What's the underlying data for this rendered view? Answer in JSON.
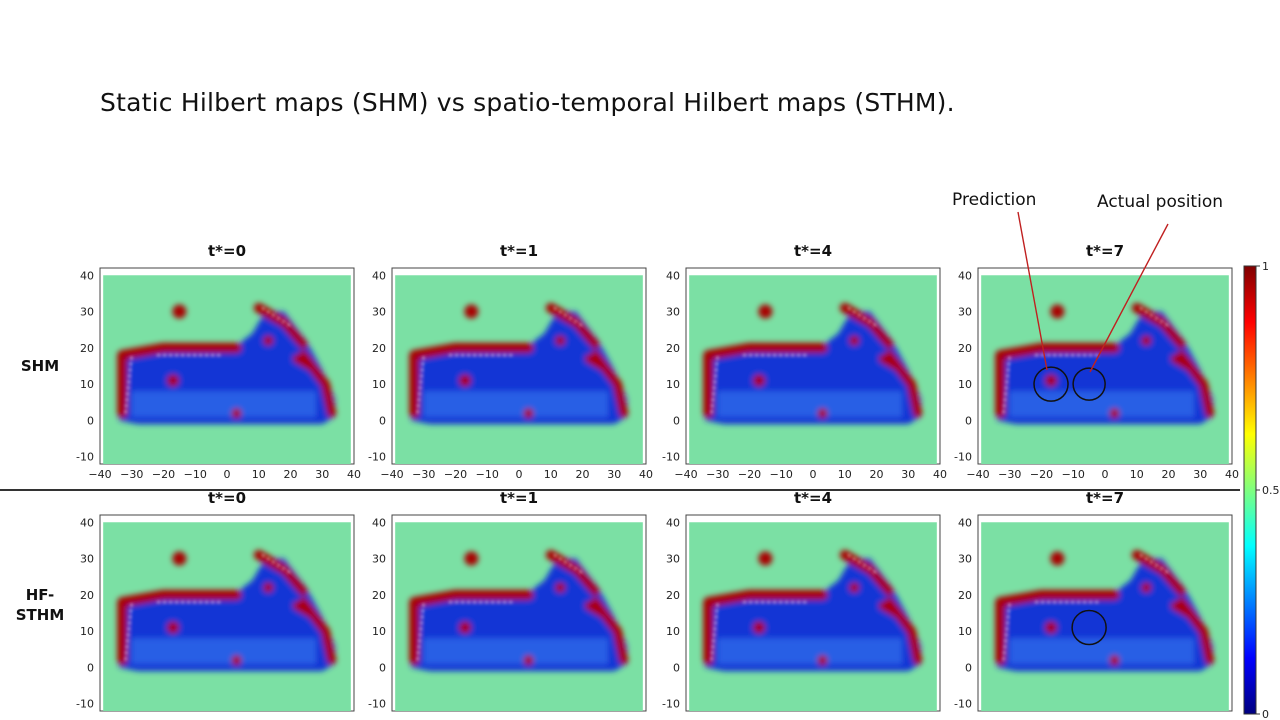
{
  "slide": {
    "title": "Static Hilbert maps (SHM) vs spatio-temporal Hilbert maps (STHM)."
  },
  "rows": [
    {
      "label": "SHM"
    },
    {
      "label": "HF-\nSTHM"
    }
  ],
  "panels": [
    {
      "title": "t*=0"
    },
    {
      "title": "t*=1"
    },
    {
      "title": "t*=4"
    },
    {
      "title": "t*=7"
    }
  ],
  "annotations": {
    "prediction": "Prediction",
    "actual": "Actual position"
  },
  "colors": {
    "background": "#7be0a4",
    "occupied": "#a80000",
    "free": "#0a2cd8",
    "free_light": "#3a7cf0",
    "edge": "#ff2a00",
    "divider": "#333333"
  },
  "chart_data": [
    {
      "type": "heatmap",
      "rows": [
        "SHM",
        "HF-STHM"
      ],
      "columns": [
        "t*=0",
        "t*=1",
        "t*=4",
        "t*=7"
      ],
      "xlim": [
        -40,
        40
      ],
      "ylim": [
        -12,
        42
      ],
      "x_ticks": [
        -40,
        -30,
        -20,
        -10,
        0,
        10,
        20,
        30,
        40
      ],
      "y_ticks": [
        -10,
        0,
        10,
        20,
        30,
        40
      ],
      "colorbar": {
        "range": [
          0,
          1
        ],
        "ticks": [
          0,
          0.5,
          1
        ],
        "colormap": "jet"
      }
    }
  ]
}
